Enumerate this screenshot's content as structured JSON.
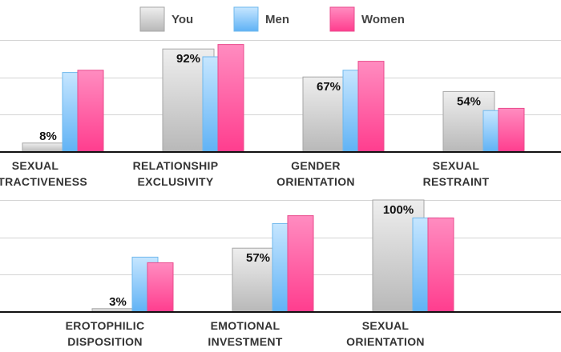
{
  "chart_data": {
    "type": "bar",
    "legend_position": "top",
    "grid": true,
    "ylim": [
      0,
      100
    ],
    "series": [
      {
        "name": "You",
        "color": "#d8d8d8"
      },
      {
        "name": "Men",
        "color": "#9fd4ff"
      },
      {
        "name": "Women",
        "color": "#ff5fa2"
      }
    ],
    "categories": [
      {
        "label": [
          "SEXUAL",
          "ATTRACTIVENESS"
        ],
        "values": [
          8,
          71,
          73
        ],
        "you_label": "8%"
      },
      {
        "label": [
          "RELATIONSHIP",
          "EXCLUSIVITY"
        ],
        "values": [
          92,
          85,
          96
        ],
        "you_label": "92%"
      },
      {
        "label": [
          "GENDER",
          "ORIENTATION"
        ],
        "values": [
          67,
          73,
          81
        ],
        "you_label": "67%"
      },
      {
        "label": [
          "SEXUAL",
          "RESTRAINT"
        ],
        "values": [
          54,
          37,
          39
        ],
        "you_label": "54%"
      },
      {
        "label": [
          "EROTOPHILIC",
          "DISPOSITION"
        ],
        "values": [
          3,
          49,
          44
        ],
        "you_label": "3%"
      },
      {
        "label": [
          "EMOTIONAL",
          "INVESTMENT"
        ],
        "values": [
          57,
          79,
          86
        ],
        "you_label": "57%"
      },
      {
        "label": [
          "SEXUAL",
          "ORIENTATION"
        ],
        "values": [
          100,
          84,
          84
        ],
        "you_label": "100%"
      }
    ]
  }
}
